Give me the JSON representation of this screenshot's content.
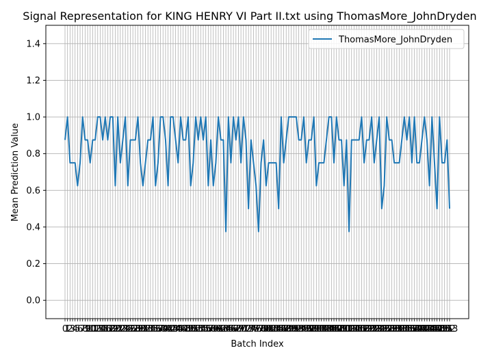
{
  "chart_data": {
    "type": "line",
    "title": "Signal Representation for KING HENRY VI Part II.txt using ThomasMore_JohnDryden",
    "xlabel": "Batch Index",
    "ylabel": "Mean Prediction Value",
    "ylim": [
      -0.1,
      1.5
    ],
    "yticks": [
      0.0,
      0.2,
      0.4,
      0.6,
      0.8,
      1.0,
      1.2,
      1.4
    ],
    "ytick_labels": [
      "0.0",
      "0.2",
      "0.4",
      "0.6",
      "0.8",
      "1.0",
      "1.2",
      "1.4"
    ],
    "grid": true,
    "legend_position": "top-right",
    "series": [
      {
        "name": "ThomasMore_JohnDryden",
        "color": "#1f77b4",
        "values": [
          0.875,
          1.0,
          0.75,
          0.75,
          0.75,
          0.625,
          0.75,
          1.0,
          0.875,
          0.875,
          0.75,
          0.875,
          0.875,
          1.0,
          1.0,
          0.875,
          1.0,
          0.875,
          1.0,
          1.0,
          0.625,
          1.0,
          0.75,
          0.875,
          1.0,
          0.625,
          0.875,
          0.875,
          0.875,
          1.0,
          0.75,
          0.625,
          0.75,
          0.875,
          0.875,
          1.0,
          0.625,
          0.75,
          1.0,
          1.0,
          0.875,
          0.625,
          1.0,
          1.0,
          0.875,
          0.75,
          1.0,
          0.875,
          0.875,
          1.0,
          0.625,
          0.75,
          1.0,
          0.875,
          1.0,
          0.875,
          1.0,
          0.625,
          0.875,
          0.625,
          0.75,
          1.0,
          0.875,
          0.875,
          0.375,
          1.0,
          0.75,
          1.0,
          0.875,
          1.0,
          0.75,
          1.0,
          0.875,
          0.5,
          0.875,
          0.75,
          0.625,
          0.375,
          0.75,
          0.875,
          0.625,
          0.75,
          0.75,
          0.75,
          0.75,
          0.5,
          1.0,
          0.75,
          0.875,
          1.0,
          1.0,
          1.0,
          1.0,
          0.875,
          0.875,
          1.0,
          0.75,
          0.875,
          0.875,
          1.0,
          0.625,
          0.75,
          0.75,
          0.75,
          0.875,
          1.0,
          1.0,
          0.75,
          1.0,
          0.875,
          0.875,
          0.625,
          0.875,
          0.375,
          0.875,
          0.875,
          0.875,
          0.875,
          1.0,
          0.75,
          0.875,
          0.875,
          1.0,
          0.75,
          0.875,
          1.0,
          0.5,
          0.625,
          1.0,
          0.875,
          0.875,
          0.75,
          0.75,
          0.75,
          0.875,
          1.0,
          0.875,
          1.0,
          0.75,
          1.0,
          0.75,
          0.75,
          0.875,
          1.0,
          0.875,
          0.625,
          1.0,
          0.75,
          0.5,
          1.0,
          0.75,
          0.75,
          0.875,
          0.5
        ]
      }
    ],
    "x_tick_labels_shown": [
      "0",
      "1",
      "2",
      "3",
      "4",
      "5",
      "6",
      "7",
      "8",
      "9",
      "10",
      "11",
      "12",
      "13",
      "14",
      "15",
      "16",
      "17",
      "18",
      "19",
      "20",
      "21",
      "22",
      "23",
      "24",
      "25",
      "26",
      "27",
      "28",
      "29",
      "30",
      "31",
      "32",
      "33",
      "34",
      "35",
      "36",
      "37",
      "38",
      "39",
      "40",
      "41",
      "42",
      "43",
      "44",
      "45",
      "46",
      "47",
      "48",
      "49",
      "50",
      "51",
      "52",
      "53",
      "54",
      "55",
      "56",
      "57",
      "58",
      "59",
      "60",
      "61",
      "62",
      "63",
      "64",
      "65",
      "66",
      "67",
      "68",
      "69",
      "70",
      "71",
      "72",
      "73",
      "74",
      "75",
      "76",
      "77",
      "78",
      "79",
      "80",
      "81",
      "82",
      "83",
      "84",
      "85",
      "86",
      "87",
      "88",
      "89",
      "90",
      "91",
      "92",
      "93",
      "94",
      "95",
      "96",
      "97",
      "98",
      "99",
      "100",
      "101",
      "102",
      "103",
      "104",
      "105",
      "106",
      "107",
      "108",
      "109",
      "110",
      "111",
      "112",
      "113",
      "114",
      "115",
      "116",
      "117",
      "118",
      "119",
      "120",
      "121",
      "122",
      "123",
      "124",
      "125",
      "126",
      "127",
      "128",
      "129",
      "130",
      "131",
      "132",
      "133",
      "134",
      "135",
      "136",
      "137",
      "138",
      "139",
      "140",
      "141",
      "142",
      "143",
      "144",
      "145",
      "146",
      "147",
      "148",
      "149",
      "150",
      "151",
      "152",
      "153"
    ]
  }
}
